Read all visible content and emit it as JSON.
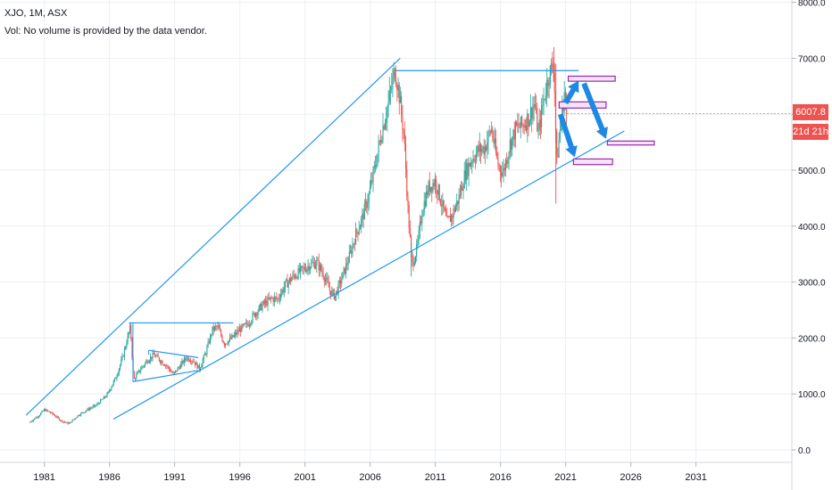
{
  "header": {
    "symbol_line": "XJO, 1M, ASX",
    "volume_line": "Vol: No volume is provided by the data vendor."
  },
  "price_label": "6007.8",
  "countdown_label": "21d 21h",
  "colors": {
    "up": "#26a69a",
    "down": "#ef5350",
    "trendline": "#2196f3",
    "arrow": "#1e88e5",
    "box_border": "#9c27b0",
    "box_fill": "#f3e5f5",
    "grid": "#eceff3",
    "badge_price": "#ef5350",
    "badge_time": "#ef5350"
  },
  "chart_data": {
    "type": "candlestick",
    "title": "XJO, 1M, ASX",
    "timeframe": "1M",
    "x_ticks": [
      "1981",
      "1986",
      "1991",
      "1996",
      "2001",
      "2006",
      "2011",
      "2016",
      "2021",
      "2026",
      "2031"
    ],
    "y_ticks": [
      "0.0",
      "1000.0",
      "2000.0",
      "3000.0",
      "4000.0",
      "5000.0",
      "6000.0",
      "7000.0",
      "8000.0"
    ],
    "xlim": [
      1977.6,
      2035.6
    ],
    "ylim": [
      -500,
      8050
    ],
    "grid": true,
    "last_price": 6007.8,
    "series_points": [
      [
        1979.9,
        500
      ],
      [
        1980.6,
        620
      ],
      [
        1981.0,
        720
      ],
      [
        1981.6,
        650
      ],
      [
        1982.3,
        520
      ],
      [
        1982.9,
        470
      ],
      [
        1983.6,
        620
      ],
      [
        1984.3,
        720
      ],
      [
        1985.0,
        800
      ],
      [
        1985.8,
        980
      ],
      [
        1986.5,
        1300
      ],
      [
        1987.0,
        1650
      ],
      [
        1987.6,
        2200
      ],
      [
        1987.85,
        1250
      ],
      [
        1988.4,
        1450
      ],
      [
        1988.9,
        1600
      ],
      [
        1989.4,
        1700
      ],
      [
        1989.9,
        1600
      ],
      [
        1990.4,
        1500
      ],
      [
        1990.9,
        1350
      ],
      [
        1991.4,
        1500
      ],
      [
        1991.9,
        1650
      ],
      [
        1992.4,
        1600
      ],
      [
        1992.9,
        1450
      ],
      [
        1993.4,
        1750
      ],
      [
        1993.9,
        2150
      ],
      [
        1994.3,
        2200
      ],
      [
        1994.8,
        1900
      ],
      [
        1995.4,
        2000
      ],
      [
        1996.0,
        2150
      ],
      [
        1996.6,
        2250
      ],
      [
        1997.2,
        2450
      ],
      [
        1997.8,
        2600
      ],
      [
        1998.4,
        2700
      ],
      [
        1998.9,
        2700
      ],
      [
        1999.5,
        2950
      ],
      [
        2000.1,
        3100
      ],
      [
        2000.7,
        3200
      ],
      [
        2001.3,
        3300
      ],
      [
        2001.9,
        3350
      ],
      [
        2002.4,
        3150
      ],
      [
        2002.9,
        2850
      ],
      [
        2003.3,
        2750
      ],
      [
        2003.8,
        3050
      ],
      [
        2004.4,
        3450
      ],
      [
        2004.9,
        3850
      ],
      [
        2005.4,
        4150
      ],
      [
        2005.9,
        4550
      ],
      [
        2006.4,
        5100
      ],
      [
        2006.9,
        5700
      ],
      [
        2007.4,
        6200
      ],
      [
        2007.9,
        6800
      ],
      [
        2008.2,
        6400
      ],
      [
        2008.6,
        5600
      ],
      [
        2008.9,
        4300
      ],
      [
        2009.2,
        3300
      ],
      [
        2009.6,
        3600
      ],
      [
        2010.0,
        4300
      ],
      [
        2010.5,
        4700
      ],
      [
        2011.0,
        4800
      ],
      [
        2011.5,
        4400
      ],
      [
        2011.9,
        4050
      ],
      [
        2012.3,
        4200
      ],
      [
        2012.8,
        4500
      ],
      [
        2013.3,
        4950
      ],
      [
        2013.8,
        5200
      ],
      [
        2014.3,
        5350
      ],
      [
        2014.8,
        5400
      ],
      [
        2015.3,
        5750
      ],
      [
        2015.8,
        5100
      ],
      [
        2016.2,
        4950
      ],
      [
        2016.7,
        5450
      ],
      [
        2017.2,
        5750
      ],
      [
        2017.7,
        5800
      ],
      [
        2018.2,
        5950
      ],
      [
        2018.6,
        6200
      ],
      [
        2018.9,
        5650
      ],
      [
        2019.3,
        6250
      ],
      [
        2019.7,
        6700
      ],
      [
        2020.1,
        6900
      ],
      [
        2020.3,
        5100
      ],
      [
        2020.6,
        5800
      ],
      [
        2020.9,
        6400
      ],
      [
        2021.1,
        6007.8
      ]
    ],
    "annotations": {
      "upper_trendline": [
        [
          1979.6,
          620
        ],
        [
          2008.3,
          7000
        ]
      ],
      "lower_trendline": [
        [
          1986.3,
          550
        ],
        [
          2025.5,
          5700
        ]
      ],
      "resistance_line": [
        [
          2008.0,
          6780
        ],
        [
          2022.0,
          6780
        ]
      ],
      "resistance_1987": [
        [
          1987.5,
          2270
        ],
        [
          1995.5,
          2270
        ]
      ],
      "triangle_upper": [
        [
          1989.0,
          1780
        ],
        [
          1992.8,
          1650
        ]
      ],
      "triangle_lower": [
        [
          1987.8,
          1220
        ],
        [
          1992.8,
          1420
        ]
      ],
      "projection_zones": [
        {
          "x": [
            2021.2,
            2024.8
          ],
          "y": [
            6590,
            6680
          ]
        },
        {
          "x": [
            2020.5,
            2024.1
          ],
          "y": [
            6110,
            6220
          ]
        },
        {
          "x": [
            2024.2,
            2027.8
          ],
          "y": [
            5450,
            5520
          ]
        },
        {
          "x": [
            2021.6,
            2024.6
          ],
          "y": [
            5100,
            5200
          ]
        }
      ],
      "projection_arrows": [
        {
          "from": [
            2021.0,
            6200
          ],
          "to": [
            2022.0,
            6600
          ]
        },
        {
          "from": [
            2022.4,
            6550
          ],
          "to": [
            2024.1,
            5560
          ]
        },
        {
          "from": [
            2020.6,
            6000
          ],
          "to": [
            2021.7,
            5230
          ]
        }
      ]
    }
  }
}
